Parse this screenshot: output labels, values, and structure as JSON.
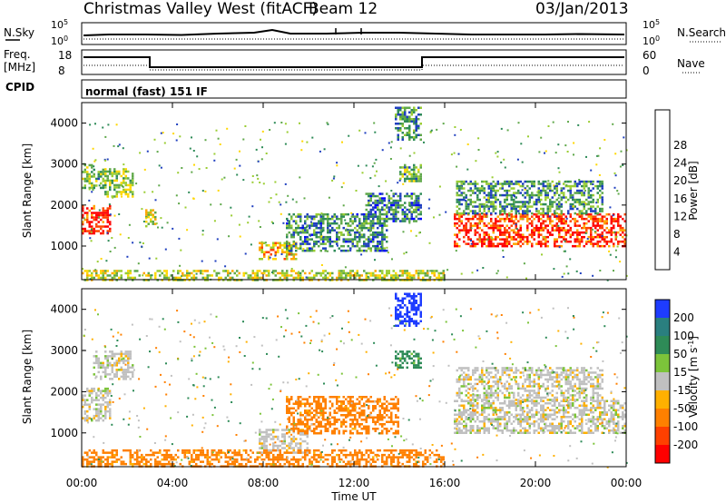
{
  "header": {
    "station": "Christmas Valley West (fitACF)",
    "beam": "Beam 12",
    "date": "03/Jan/2013"
  },
  "strips": {
    "nsky": {
      "label": "N.Sky",
      "ticks": [
        "10^5",
        "10^0"
      ],
      "right_label": "N.Search",
      "right_ticks": [
        "10^5",
        "10^0"
      ]
    },
    "freq": {
      "label_1": "Freq.",
      "label_2": "[MHz]",
      "ticks": [
        "18",
        "8"
      ],
      "right_label": "Nave",
      "right_ticks": [
        "60",
        "0"
      ]
    },
    "cpid": {
      "label": "CPID",
      "text": "normal (fast) 151 IF"
    }
  },
  "chart_data": [
    {
      "type": "heatmap",
      "panel": "power",
      "xlabel": "Time UT",
      "ylabel": "Slant Range [km]",
      "x_ticks": [
        "00:00",
        "04:00",
        "08:00",
        "12:00",
        "16:00",
        "20:00",
        "00:00"
      ],
      "x_range_hours": [
        0,
        24
      ],
      "y_ticks": [
        "1000",
        "2000",
        "3000",
        "4000"
      ],
      "y_range_km": [
        180,
        4500
      ],
      "colorbar": {
        "label": "Power [dB]",
        "ticks": [
          "4",
          "8",
          "12",
          "16",
          "20",
          "24",
          "28"
        ],
        "range": [
          0,
          30
        ],
        "colors": [
          "#0000ff",
          "#1f3fbf",
          "#2e8b57",
          "#5fa84a",
          "#9acd32",
          "#ffd700",
          "#ffa500",
          "#ff4500",
          "#ff0000"
        ]
      },
      "regions": [
        {
          "t0": 0.0,
          "t1": 1.3,
          "r0": 1300,
          "r1": 2000,
          "level": 27
        },
        {
          "t0": 0.0,
          "t1": 1.0,
          "r0": 2400,
          "r1": 3000,
          "level": 12
        },
        {
          "t0": 1.0,
          "t1": 2.3,
          "r0": 2200,
          "r1": 2900,
          "level": 14
        },
        {
          "t0": 2.8,
          "t1": 3.3,
          "r0": 1500,
          "r1": 1900,
          "level": 18
        },
        {
          "t0": 7.8,
          "t1": 9.5,
          "r0": 700,
          "r1": 1100,
          "level": 20
        },
        {
          "t0": 9.0,
          "t1": 13.5,
          "r0": 900,
          "r1": 1800,
          "level": 9
        },
        {
          "t0": 12.5,
          "t1": 15.0,
          "r0": 1600,
          "r1": 2300,
          "level": 8
        },
        {
          "t0": 14.0,
          "t1": 15.0,
          "r0": 2600,
          "r1": 3000,
          "level": 12
        },
        {
          "t0": 13.8,
          "t1": 15.0,
          "r0": 3600,
          "r1": 4400,
          "level": 10
        },
        {
          "t0": 16.4,
          "t1": 24.0,
          "r0": 1000,
          "r1": 1800,
          "level": 27
        },
        {
          "t0": 16.5,
          "t1": 23.0,
          "r0": 1800,
          "r1": 2600,
          "level": 10
        },
        {
          "t0": 0.0,
          "t1": 16.0,
          "r0": 180,
          "r1": 420,
          "level": 16
        }
      ]
    },
    {
      "type": "heatmap",
      "panel": "velocity",
      "xlabel": "Time UT",
      "ylabel": "Slant Range [km]",
      "x_ticks": [
        "00:00",
        "04:00",
        "08:00",
        "12:00",
        "16:00",
        "20:00",
        "00:00"
      ],
      "x_range_hours": [
        0,
        24
      ],
      "y_ticks": [
        "1000",
        "2000",
        "3000",
        "4000"
      ],
      "y_range_km": [
        180,
        4500
      ],
      "colorbar": {
        "label": "Velocity [m s^-1]",
        "ticks": [
          "200",
          "100",
          "50",
          "15",
          "-15",
          "-50",
          "-100",
          "-200"
        ],
        "colors": [
          "#1e3cff",
          "#2a7f7f",
          "#2e8b57",
          "#7cc43a",
          "#c0c0c0",
          "#ffb000",
          "#ff8000",
          "#ff4000",
          "#ff0000"
        ]
      },
      "regions": [
        {
          "t0": 0.0,
          "t1": 1.3,
          "r0": 1300,
          "r1": 2100,
          "level": 0
        },
        {
          "t0": 0.5,
          "t1": 2.3,
          "r0": 2300,
          "r1": 3000,
          "level": 0
        },
        {
          "t0": 7.8,
          "t1": 10.0,
          "r0": 500,
          "r1": 1100,
          "level": 0
        },
        {
          "t0": 9.0,
          "t1": 14.0,
          "r0": 1000,
          "r1": 1900,
          "level": -50
        },
        {
          "t0": 13.8,
          "t1": 15.0,
          "r0": 2600,
          "r1": 3000,
          "level": 50
        },
        {
          "t0": 13.8,
          "t1": 15.0,
          "r0": 3600,
          "r1": 4400,
          "level": 200
        },
        {
          "t0": 16.4,
          "t1": 24.0,
          "r0": 1000,
          "r1": 1800,
          "level": 0
        },
        {
          "t0": 16.5,
          "t1": 23.0,
          "r0": 1800,
          "r1": 2600,
          "level": 0
        },
        {
          "t0": 0.0,
          "t1": 16.0,
          "r0": 180,
          "r1": 600,
          "level": -50
        }
      ]
    }
  ]
}
